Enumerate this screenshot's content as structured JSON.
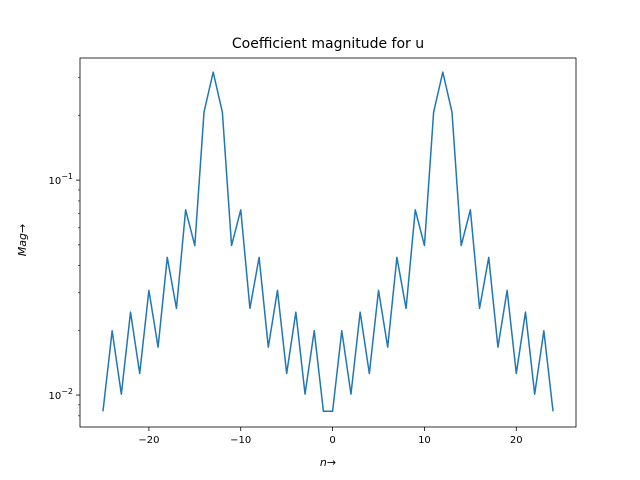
{
  "chart_data": {
    "type": "line",
    "title": "Coefficient magnitude for u",
    "xlabel": "n→",
    "ylabel": "Mag→",
    "xlim": [
      -27.5,
      26.5
    ],
    "ylim": [
      0.0071,
      0.37
    ],
    "yscale": "log",
    "grid": false,
    "x_ticks": [
      -20,
      -10,
      0,
      10,
      20
    ],
    "x_tick_labels": [
      "−20",
      "−10",
      "0",
      "10",
      "20"
    ],
    "y_major_ticks": [
      0.01,
      0.1
    ],
    "y_minor_ticks": [
      0.008,
      0.009,
      0.02,
      0.03,
      0.04,
      0.05,
      0.06,
      0.07,
      0.08,
      0.09,
      0.2,
      0.3
    ],
    "series": [
      {
        "color": "#1f77b4",
        "x": [
          -25,
          -24,
          -23,
          -22,
          -21,
          -20,
          -19,
          -18,
          -17,
          -16,
          -15,
          -14,
          -13,
          -12,
          -11,
          -10,
          -9,
          -8,
          -7,
          -6,
          -5,
          -4,
          -3,
          -2,
          -1,
          0,
          1,
          2,
          3,
          4,
          5,
          6,
          7,
          8,
          9,
          10,
          11,
          12,
          13,
          14,
          15,
          16,
          17,
          18,
          19,
          20,
          21,
          22,
          23,
          24
        ],
        "y": [
          0.0084,
          0.0199,
          0.0101,
          0.0243,
          0.0126,
          0.0307,
          0.0167,
          0.0437,
          0.0253,
          0.0727,
          0.0496,
          0.207,
          0.318,
          0.207,
          0.0496,
          0.0727,
          0.0253,
          0.0437,
          0.0167,
          0.0307,
          0.0126,
          0.0243,
          0.0101,
          0.0199,
          0.0084,
          0.0084,
          0.0199,
          0.0101,
          0.0243,
          0.0126,
          0.0307,
          0.0167,
          0.0437,
          0.0253,
          0.0727,
          0.0496,
          0.207,
          0.318,
          0.207,
          0.0496,
          0.0727,
          0.0253,
          0.0437,
          0.0167,
          0.0307,
          0.0126,
          0.0243,
          0.0101,
          0.0199,
          0.0084
        ]
      }
    ]
  }
}
